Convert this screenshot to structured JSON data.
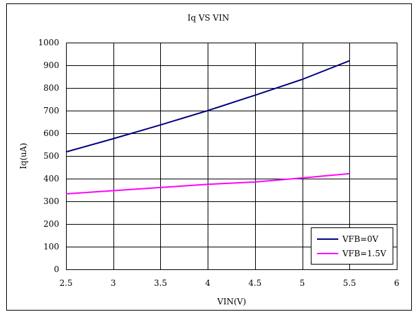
{
  "chart_data": {
    "type": "line",
    "title": "Iq VS VIN",
    "xlabel": "VIN(V)",
    "ylabel": "Iq(uA)",
    "xlim": [
      2.5,
      6
    ],
    "ylim": [
      0,
      1000
    ],
    "xticks": [
      2.5,
      3,
      3.5,
      4,
      4.5,
      5,
      5.5,
      6
    ],
    "xtick_labels": [
      "2.5",
      "3",
      "3.5",
      "4",
      "4.5",
      "5",
      "5.5",
      "6"
    ],
    "yticks": [
      0,
      100,
      200,
      300,
      400,
      500,
      600,
      700,
      800,
      900,
      1000
    ],
    "ytick_labels": [
      "0",
      "100",
      "200",
      "300",
      "400",
      "500",
      "600",
      "700",
      "800",
      "900",
      "1000"
    ],
    "grid": true,
    "legend_position": "bottom-right",
    "series": [
      {
        "name": "VFB=0V",
        "color": "#000080",
        "x": [
          2.5,
          3,
          3.5,
          4,
          4.5,
          5,
          5.5
        ],
        "y": [
          518,
          576,
          637,
          700,
          768,
          838,
          920
        ]
      },
      {
        "name": "VFB=1.5V",
        "color": "#ff00ff",
        "x": [
          2.5,
          3,
          3.5,
          4,
          4.5,
          5,
          5.5
        ],
        "y": [
          333,
          347,
          361,
          375,
          385,
          403,
          422
        ]
      }
    ]
  }
}
